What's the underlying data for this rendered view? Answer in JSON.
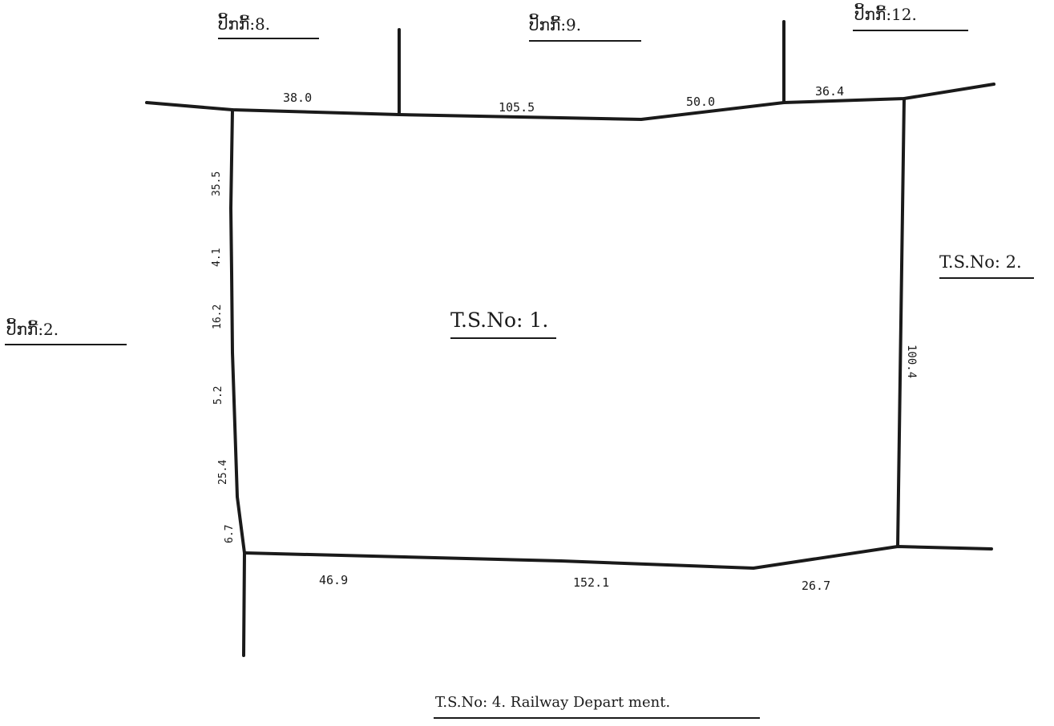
{
  "plot": {
    "label": "T.S.No: 1."
  },
  "neighbors": {
    "top_left": "ປິ້ກກີ້:8.",
    "top_mid": "ປິ້ກກີ້:9.",
    "top_right": "ປິ້ກກີ້:12.",
    "left": "ປິ້ກກີ້:2.",
    "right": "T.S.No: 2.",
    "bottom": "T.S.No: 4. Railway Depart ment."
  },
  "measurements": {
    "top": [
      "38.0",
      "105.5",
      "50.0",
      "36.4"
    ],
    "bottom": [
      "46.9",
      "152.1",
      "26.7"
    ],
    "left": [
      "35.5",
      "4.1",
      "16.2",
      "5.2",
      "25.4",
      "6.7"
    ],
    "right": [
      "100.4"
    ]
  },
  "colors": {
    "ink": "#1a1a1a",
    "paper": "#ffffff"
  }
}
